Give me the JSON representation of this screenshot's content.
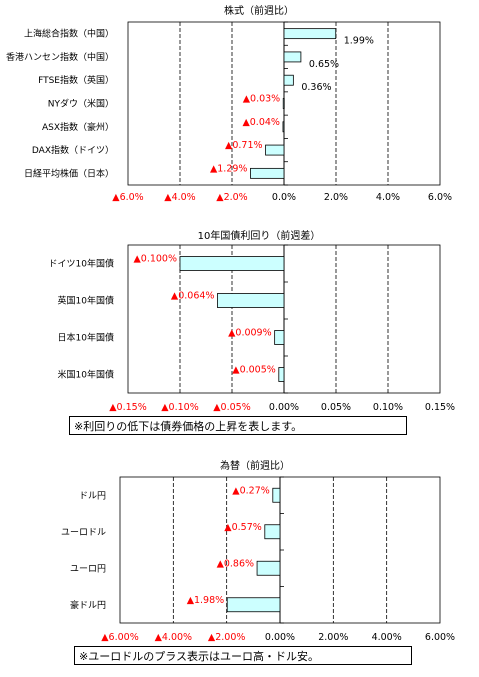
{
  "chart_data": [
    {
      "type": "bar",
      "orientation": "horizontal",
      "title": "株式（前週比）",
      "categories": [
        "上海総合指数（中国）",
        "香港ハンセン指数（中国）",
        "FTSE指数（英国）",
        "NYダウ（米国）",
        "ASX指数（豪州）",
        "DAX指数（ドイツ）",
        "日経平均株価（日本）"
      ],
      "values": [
        1.99,
        0.65,
        0.36,
        -0.03,
        -0.04,
        -0.71,
        -1.29
      ],
      "value_labels": [
        "1.99%",
        "0.65%",
        "0.36%",
        "▲0.03%",
        "▲0.04%",
        "▲0.71%",
        "▲1.29%"
      ],
      "xlim": [
        -6,
        6
      ],
      "xticks": [
        -6,
        -4,
        -2,
        0,
        2,
        4,
        6
      ],
      "xtick_labels": [
        "▲6.0%",
        "▲4.0%",
        "▲2.0%",
        "0.0%",
        "2.0%",
        "4.0%",
        "6.0%"
      ],
      "grid": true,
      "bar_color": "#ccffff"
    },
    {
      "type": "bar",
      "orientation": "horizontal",
      "title": "10年国債利回り（前週差）",
      "categories": [
        "ドイツ10年国債",
        "英国10年国債",
        "日本10年国債",
        "米国10年国債"
      ],
      "values": [
        -0.1,
        -0.064,
        -0.009,
        -0.005
      ],
      "value_labels": [
        "▲0.100%",
        "▲0.064%",
        "▲0.009%",
        "▲0.005%"
      ],
      "xlim": [
        -0.15,
        0.15
      ],
      "xticks": [
        -0.15,
        -0.1,
        -0.05,
        0,
        0.05,
        0.1,
        0.15
      ],
      "xtick_labels": [
        "▲0.15%",
        "▲0.10%",
        "▲0.05%",
        "0.00%",
        "0.05%",
        "0.10%",
        "0.15%"
      ],
      "grid": true,
      "bar_color": "#ccffff"
    },
    {
      "type": "bar",
      "orientation": "horizontal",
      "title": "為替（前週比）",
      "categories": [
        "ドル円",
        "ユーロドル",
        "ユーロ円",
        "豪ドル円"
      ],
      "values": [
        -0.27,
        -0.57,
        -0.86,
        -1.98
      ],
      "value_labels": [
        "▲0.27%",
        "▲0.57%",
        "▲0.86%",
        "▲1.98%"
      ],
      "xlim": [
        -6,
        6
      ],
      "xticks": [
        -6,
        -4,
        -2,
        0,
        2,
        4,
        6
      ],
      "xtick_labels": [
        "▲6.00%",
        "▲4.00%",
        "▲2.00%",
        "0.00%",
        "2.00%",
        "4.00%",
        "6.00%"
      ],
      "grid": true,
      "bar_color": "#ccffff"
    }
  ],
  "notes": {
    "bond_note": "※利回りの低下は債券価格の上昇を表します。",
    "fx_note": "※ユーロドルのプラス表示はユーロ高・ドル安。"
  },
  "colors": {
    "negative_label": "#ff0000",
    "positive_label": "#000000",
    "bar_stroke": "#000000",
    "grid": "#000000"
  }
}
